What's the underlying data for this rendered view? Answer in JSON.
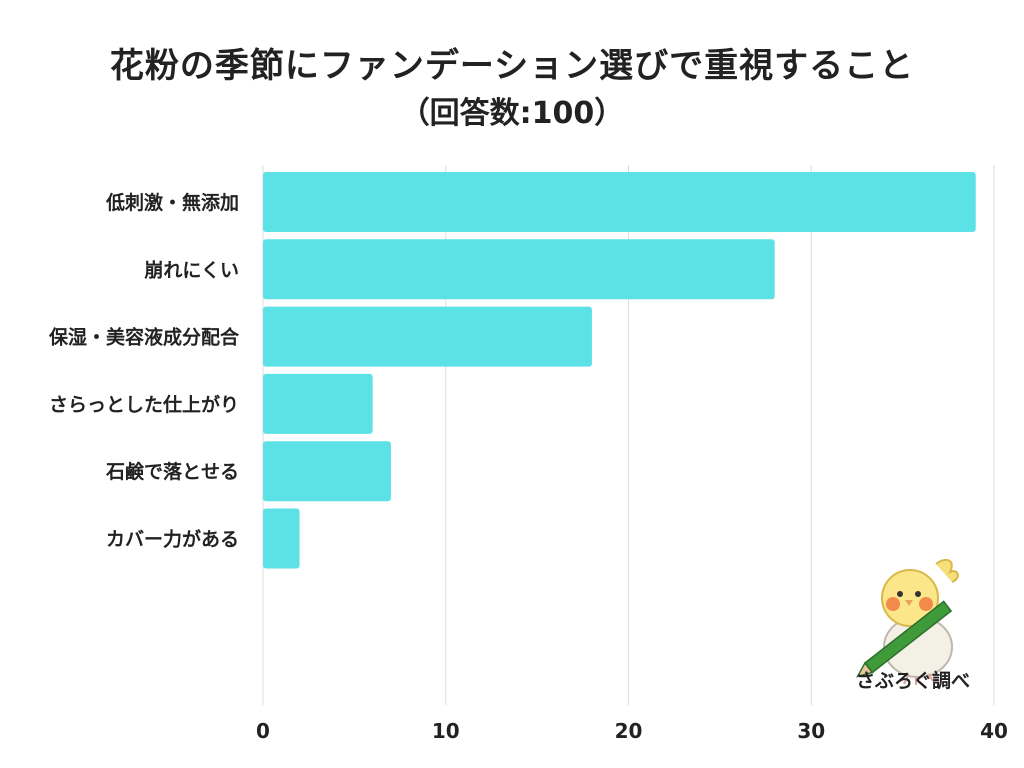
{
  "title": "花粉の季節にファンデーション選びで重視すること",
  "subtitle": "（回答数:100）",
  "credit": "さぶろぐ調べ",
  "colors": {
    "bar": "#5ce1e6",
    "grid": "#dddddd",
    "text": "#222222"
  },
  "chart_data": {
    "type": "bar",
    "orientation": "horizontal",
    "categories": [
      "低刺激・無添加",
      "崩れにくい",
      "保湿・美容液成分配合",
      "さらっとした仕上がり",
      "石鹸で落とせる",
      "カバー力がある"
    ],
    "values": [
      39,
      28,
      18,
      6,
      7,
      2
    ],
    "xlim": [
      0,
      40
    ],
    "xticks": [
      0,
      10,
      20,
      30,
      40
    ],
    "grid": true,
    "legend": "none"
  }
}
